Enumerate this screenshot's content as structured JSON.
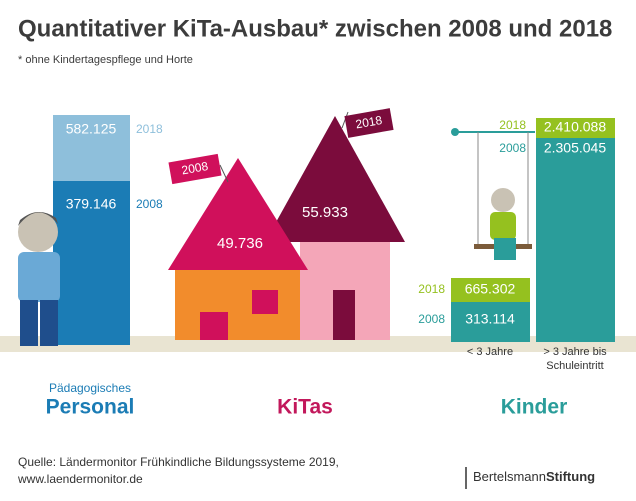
{
  "header": {
    "title": "Quantitativer KiTa-Ausbau* zwischen 2008 und 2018",
    "footnote": "* ohne Kindertagespflege und Horte"
  },
  "personal": {
    "label_small": "Pädagogisches",
    "label": "Personal",
    "value_2018": "582.125",
    "year_2018": "2018",
    "value_2008": "379.146",
    "year_2008": "2008"
  },
  "kitas": {
    "label": "KiTas",
    "value_2008": "49.736",
    "flag_2008": "2008",
    "value_2018": "55.933",
    "flag_2018": "2018"
  },
  "kinder": {
    "label": "Kinder",
    "under3": {
      "label": "< 3 Jahre",
      "value_2018": "665.302",
      "year_2018": "2018",
      "value_2008": "313.114",
      "year_2008": "2008"
    },
    "over3": {
      "label_line1": "> 3 Jahre bis",
      "label_line2": "Schuleintritt",
      "value_2018": "2.410.088",
      "year_2018": "2018",
      "value_2008": "2.305.045",
      "year_2008": "2008"
    }
  },
  "footer": {
    "source": "Quelle: Ländermonitor Frühkindliche Bildungssysteme 2019,",
    "url": "www.laendermonitor.de",
    "logo_light": "Bertelsmann",
    "logo_bold": "Stiftung"
  }
}
